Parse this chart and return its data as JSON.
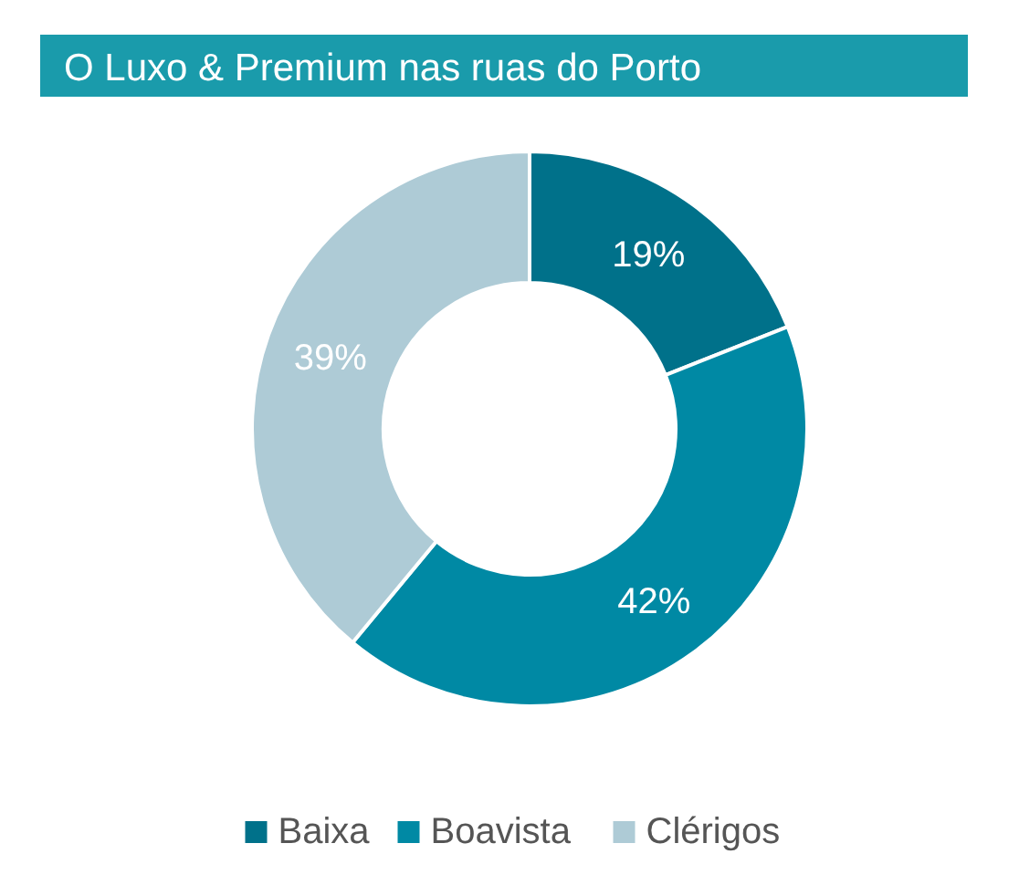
{
  "chart_data": {
    "type": "donut",
    "title": "O Luxo & Premium nas ruas do Porto",
    "categories": [
      "Baixa",
      "Boavista",
      "Clérigos"
    ],
    "values": [
      19,
      42,
      39
    ],
    "colors": [
      "#00718a",
      "#0089a4",
      "#aecbd6"
    ],
    "value_labels": [
      "19%",
      "42%",
      "39%"
    ],
    "legend": "bottom"
  }
}
